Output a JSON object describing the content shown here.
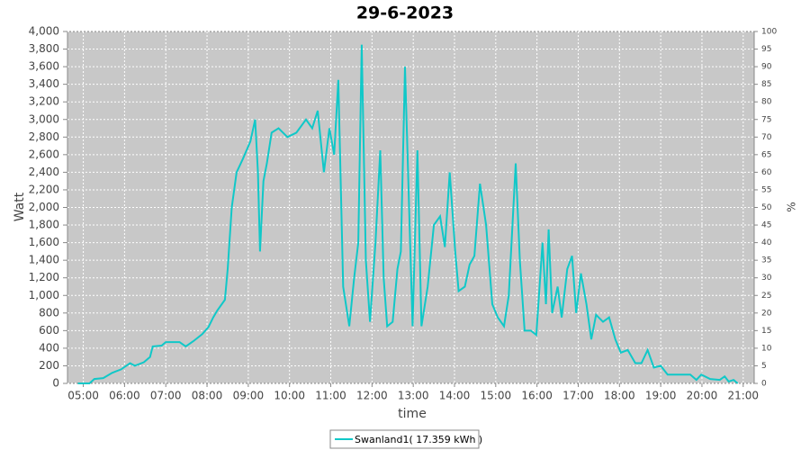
{
  "chart_data": {
    "type": "line",
    "title": "29-6-2023",
    "x_label": "time",
    "y_label": "Watt",
    "y2_label": "%",
    "x": [
      "04:52",
      "05:09",
      "05:16",
      "05:29",
      "05:42",
      "05:55",
      "06:08",
      "06:15",
      "06:28",
      "06:37",
      "06:41",
      "06:54",
      "07:00",
      "07:20",
      "07:29",
      "07:40",
      "07:53",
      "08:02",
      "08:09",
      "08:15",
      "08:26",
      "08:30",
      "08:36",
      "08:43",
      "08:52",
      "09:03",
      "09:10",
      "09:14",
      "09:17",
      "09:22",
      "09:27",
      "09:34",
      "09:44",
      "09:57",
      "10:10",
      "10:24",
      "10:33",
      "10:41",
      "10:50",
      "10:58",
      "11:05",
      "11:11",
      "11:18",
      "11:27",
      "11:34",
      "11:40",
      "11:45",
      "11:51",
      "11:57",
      "12:05",
      "12:12",
      "12:17",
      "12:22",
      "12:30",
      "12:37",
      "12:42",
      "12:48",
      "12:55",
      "12:59",
      "13:06",
      "13:12",
      "13:21",
      "13:30",
      "13:39",
      "13:46",
      "13:53",
      "14:01",
      "14:06",
      "14:15",
      "14:22",
      "14:29",
      "14:37",
      "14:46",
      "14:55",
      "15:03",
      "15:12",
      "15:19",
      "15:29",
      "15:35",
      "15:42",
      "15:51",
      "15:59",
      "16:08",
      "16:13",
      "16:17",
      "16:22",
      "16:30",
      "16:36",
      "16:44",
      "16:51",
      "16:57",
      "17:04",
      "17:12",
      "17:19",
      "17:26",
      "17:36",
      "17:45",
      "17:54",
      "18:02",
      "18:12",
      "18:23",
      "18:32",
      "18:41",
      "18:50",
      "19:00",
      "19:10",
      "19:33",
      "19:43",
      "19:52",
      "19:59",
      "20:12",
      "20:26",
      "20:33",
      "20:39",
      "20:46",
      "20:52"
    ],
    "series": [
      {
        "name": "Swanland1( 17.359 kWh )",
        "color": "#10c8c8",
        "values": [
          0,
          0,
          50,
          60,
          120,
          160,
          230,
          200,
          240,
          300,
          420,
          430,
          470,
          470,
          420,
          480,
          560,
          640,
          750,
          830,
          950,
          1300,
          2000,
          2400,
          2550,
          2750,
          3000,
          2400,
          1500,
          2300,
          2500,
          2850,
          2900,
          2800,
          2850,
          3000,
          2900,
          3100,
          2400,
          2900,
          2600,
          3450,
          1100,
          650,
          1200,
          1600,
          3850,
          1400,
          700,
          1600,
          2650,
          1200,
          650,
          700,
          1300,
          1500,
          3600,
          1700,
          650,
          2650,
          650,
          1100,
          1800,
          1900,
          1550,
          2400,
          1500,
          1050,
          1100,
          1350,
          1450,
          2270,
          1800,
          900,
          750,
          650,
          1000,
          2500,
          1400,
          600,
          600,
          550,
          1600,
          900,
          1750,
          800,
          1100,
          750,
          1300,
          1450,
          800,
          1250,
          900,
          500,
          780,
          700,
          750,
          500,
          350,
          380,
          230,
          230,
          380,
          180,
          200,
          100,
          100,
          100,
          40,
          100,
          50,
          40,
          80,
          20,
          40,
          0
        ]
      }
    ],
    "xlim": [
      "04:37",
      "21:16"
    ],
    "xticks": [
      "05:00",
      "06:00",
      "07:00",
      "08:00",
      "09:00",
      "10:00",
      "11:00",
      "12:00",
      "13:00",
      "14:00",
      "15:00",
      "16:00",
      "17:00",
      "18:00",
      "19:00",
      "20:00",
      "21:00"
    ],
    "ylim": [
      0,
      4000
    ],
    "yticks": [
      0,
      200,
      400,
      600,
      800,
      {
        "value": 1000,
        "label": "1,000"
      },
      {
        "value": 1200,
        "label": "1,200"
      },
      {
        "value": 1400,
        "label": "1,400"
      },
      {
        "value": 1600,
        "label": "1,600"
      },
      {
        "value": 1800,
        "label": "1,800"
      },
      {
        "value": 2000,
        "label": "2,000"
      },
      {
        "value": 2200,
        "label": "2,200"
      },
      {
        "value": 2400,
        "label": "2,400"
      },
      {
        "value": 2600,
        "label": "2,600"
      },
      {
        "value": 2800,
        "label": "2,800"
      },
      {
        "value": 3000,
        "label": "3,000"
      },
      {
        "value": 3200,
        "label": "3,200"
      },
      {
        "value": 3400,
        "label": "3,400"
      },
      {
        "value": 3600,
        "label": "3,600"
      },
      {
        "value": 3800,
        "label": "3,800"
      },
      {
        "value": 4000,
        "label": "4,000"
      }
    ],
    "y2lim": [
      0,
      100
    ],
    "y2ticks": [
      0,
      5,
      10,
      15,
      20,
      25,
      30,
      35,
      40,
      45,
      50,
      55,
      60,
      65,
      70,
      75,
      80,
      85,
      90,
      95,
      100
    ],
    "grid": true,
    "legend": "bottom"
  }
}
